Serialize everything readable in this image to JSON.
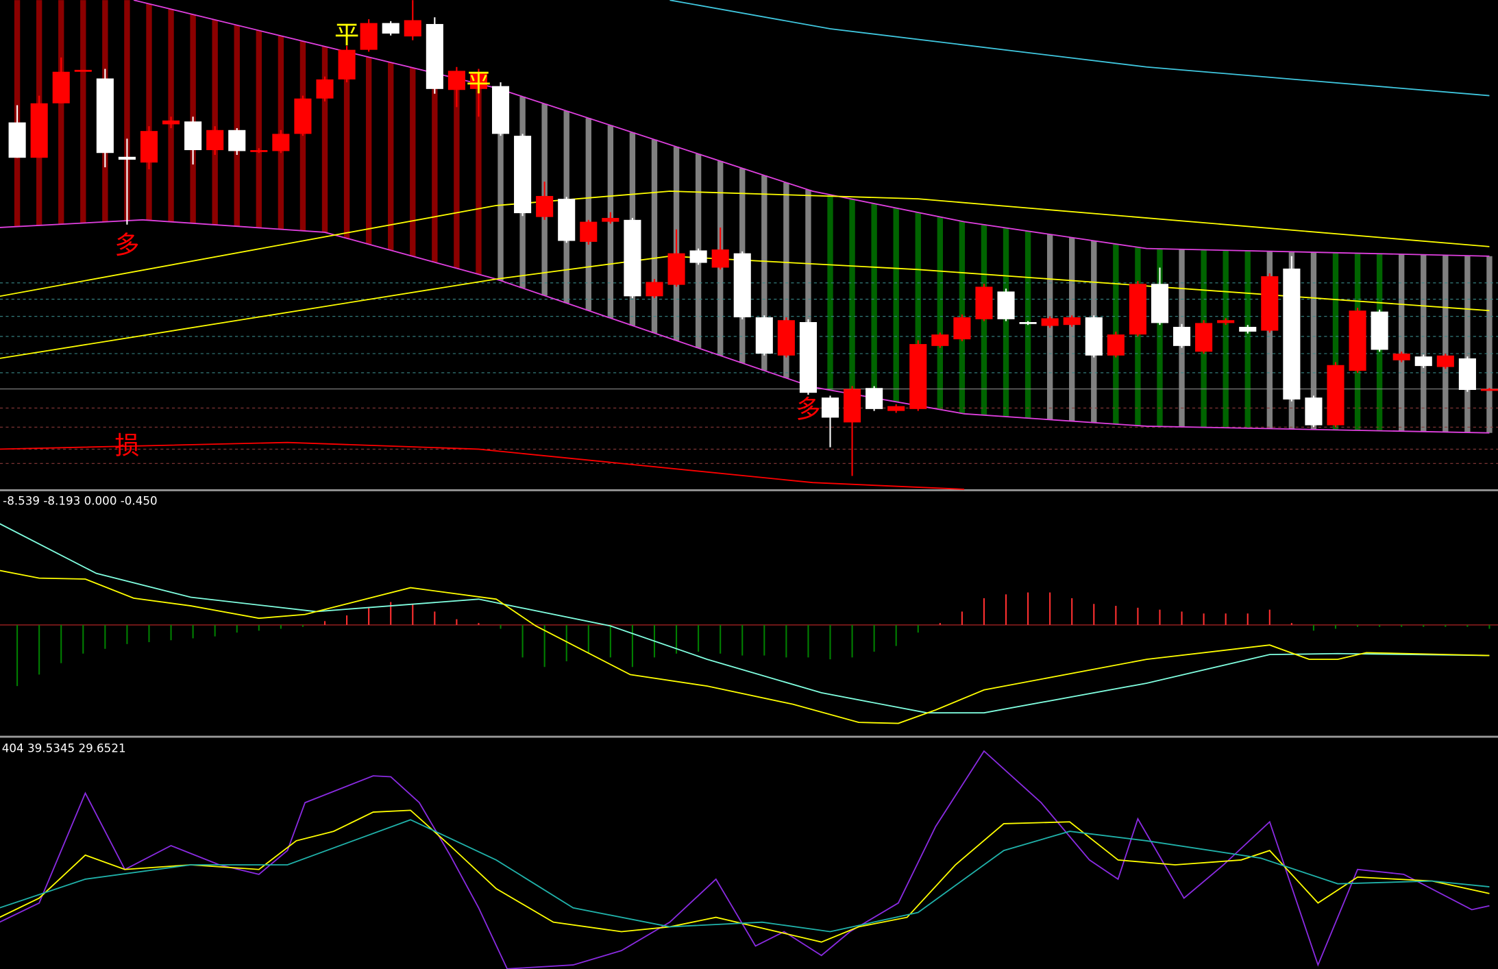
{
  "chart_data": [
    {
      "type": "candlestick",
      "open": [
        384,
        347,
        404,
        438,
        430,
        348,
        342,
        382,
        385,
        355,
        376,
        354,
        354,
        372,
        409,
        429,
        460,
        488,
        474,
        487,
        418,
        419,
        422,
        370,
        285,
        304,
        259,
        280,
        282,
        202,
        214,
        250,
        232,
        247,
        180,
        140,
        175,
        96,
        70,
        106,
        82,
        84,
        150,
        157,
        178,
        207,
        175,
        171,
        172,
        180,
        140,
        162,
        215,
        170,
        144,
        174,
        170,
        166,
        231,
        96,
        67,
        124,
        186,
        135,
        139,
        128,
        137,
        104
      ],
      "close": [
        347,
        404,
        437,
        439,
        352,
        345,
        375,
        386,
        355,
        376,
        354,
        355,
        372,
        409,
        429,
        460,
        488,
        477,
        491,
        419,
        438,
        435,
        372,
        289,
        307,
        260,
        280,
        284,
        202,
        217,
        247,
        237,
        251,
        180,
        142,
        177,
        101,
        75,
        105,
        84,
        87,
        152,
        162,
        180,
        212,
        178,
        173,
        179,
        180,
        140,
        162,
        215,
        174,
        150,
        174,
        177,
        165,
        223,
        94,
        67,
        130,
        187,
        146,
        142,
        129,
        140,
        104,
        105
      ],
      "high": [
        402,
        412,
        452,
        439,
        440,
        367,
        380,
        390,
        390,
        380,
        378,
        357,
        376,
        412,
        432,
        464,
        492,
        490,
        512,
        494,
        442,
        440,
        426,
        372,
        322,
        306,
        282,
        290,
        284,
        220,
        272,
        252,
        274,
        249,
        182,
        180,
        178,
        98,
        108,
        108,
        89,
        156,
        164,
        183,
        215,
        210,
        176,
        181,
        182,
        182,
        165,
        218,
        232,
        173,
        177,
        179,
        172,
        226,
        244,
        98,
        133,
        190,
        188,
        144,
        141,
        142,
        139,
        106
      ],
      "low": [
        347,
        347,
        404,
        438,
        337,
        277,
        335,
        378,
        340,
        350,
        350,
        352,
        352,
        370,
        406,
        426,
        458,
        475,
        470,
        414,
        400,
        390,
        370,
        286,
        282,
        258,
        256,
        278,
        200,
        200,
        212,
        235,
        230,
        178,
        140,
        138,
        99,
        44,
        14,
        82,
        80,
        82,
        148,
        155,
        176,
        176,
        172,
        169,
        170,
        138,
        138,
        160,
        172,
        148,
        142,
        172,
        163,
        164,
        92,
        65,
        65,
        122,
        144,
        133,
        127,
        126,
        102,
        103
      ],
      "column_colors": [
        "#8b0000",
        "#8b0000",
        "#8b0000",
        "#8b0000",
        "#8b0000",
        "#8b0000",
        "#8b0000",
        "#8b0000",
        "#8b0000",
        "#8b0000",
        "#8b0000",
        "#8b0000",
        "#8b0000",
        "#8b0000",
        "#8b0000",
        "#8b0000",
        "#8b0000",
        "#8b0000",
        "#8b0000",
        "#8b0000",
        "#8b0000",
        "#8b0000",
        "#808080",
        "#808080",
        "#808080",
        "#808080",
        "#808080",
        "#808080",
        "#808080",
        "#808080",
        "#808080",
        "#808080",
        "#808080",
        "#808080",
        "#808080",
        "#808080",
        "#808080",
        "#006400",
        "#006400",
        "#006400",
        "#006400",
        "#006400",
        "#006400",
        "#006400",
        "#006400",
        "#006400",
        "#006400",
        "#808080",
        "#808080",
        "#808080",
        "#006400",
        "#006400",
        "#006400",
        "#808080",
        "#006400",
        "#006400",
        "#006400",
        "#808080",
        "#808080",
        "#808080",
        "#006400",
        "#006400",
        "#006400",
        "#808080",
        "#808080",
        "#808080",
        "#808080",
        "#808080"
      ],
      "up_color": "#ff0000",
      "down_color": "#ffffff",
      "lines": [
        {
          "color": "#e040e0",
          "x": [
            5.3,
            21.8,
            36.2,
            43.1,
            51.4,
            67
          ],
          "values": [
            512,
            420,
            312,
            280,
            252,
            244
          ]
        },
        {
          "color": "#e040e0",
          "x": [
            -0.8,
            5.7,
            14,
            21.8,
            36.2,
            43.1,
            51.4,
            67
          ],
          "values": [
            274,
            282,
            269,
            220,
            107,
            79,
            66,
            59
          ]
        },
        {
          "color": "#ffff00",
          "x": [
            -0.8,
            21.8,
            29.7,
            41,
            67
          ],
          "values": [
            202,
            297,
            312,
            304,
            254
          ]
        },
        {
          "color": "#ffff00",
          "x": [
            -0.8,
            21.8,
            29.7,
            41,
            67
          ],
          "values": [
            137,
            220,
            244,
            230,
            187
          ]
        },
        {
          "color": "#40c8e0",
          "x": [
            29.7,
            37,
            51.4,
            67
          ],
          "values": [
            512,
            482,
            442,
            412
          ]
        },
        {
          "color": "#ff0000",
          "x": [
            -0.8,
            12.3,
            21,
            36.2,
            43.1
          ],
          "values": [
            42,
            49,
            42,
            7,
            0
          ]
        }
      ],
      "annotations": [
        {
          "text": "平",
          "x": 15,
          "value": 474,
          "color": "#ffff00"
        },
        {
          "text": "平",
          "x": 21,
          "value": 424,
          "color": "#ffff00"
        },
        {
          "text": "多",
          "x": 5,
          "value": 254,
          "color": "#ff0000"
        },
        {
          "text": "多",
          "x": 36,
          "value": 82,
          "color": "#ff0000"
        },
        {
          "text": "损",
          "x": 5,
          "value": 44,
          "color": "#ff0000"
        }
      ]
    },
    {
      "type": "macd",
      "header": "-8.539 -8.193 0.000 -0.450",
      "histogram": [
        -64,
        -52,
        -40,
        -30,
        -25,
        -20,
        -18,
        -16,
        -14,
        -12,
        -8,
        -6,
        -4,
        -2,
        4,
        10,
        18,
        24,
        22,
        14,
        6,
        2,
        -4,
        -34,
        -44,
        -38,
        -30,
        -34,
        -44,
        -34,
        -30,
        -28,
        -30,
        -32,
        -32,
        -34,
        -34,
        -36,
        -34,
        -28,
        -22,
        -8,
        2,
        14,
        28,
        32,
        34,
        34,
        28,
        22,
        20,
        18,
        16,
        14,
        12,
        12,
        12,
        16,
        2,
        -6,
        -4,
        -2,
        -2,
        -2,
        -2,
        -2,
        -2,
        -4
      ],
      "up_color": "#ff3030",
      "down_color": "#008000",
      "series": [
        {
          "color": "#80ffe0",
          "x": [
            -0.8,
            3.6,
            7.9,
            13.6,
            21,
            27,
            31.4,
            36.6,
            41.4,
            44,
            51.4,
            57,
            60.1,
            67
          ],
          "values": [
            106,
            54,
            29,
            14,
            27,
            -1,
            -36,
            -71,
            -92,
            -92,
            -61,
            -31,
            -30,
            -32
          ]
        },
        {
          "color": "#ffff00",
          "x": [
            -0.8,
            1.0,
            3.1,
            5.3,
            7.9,
            11.0,
            13.1,
            17.9,
            21.8,
            23.6,
            27.9,
            31.4,
            35.3,
            38.3,
            40.1,
            41.8,
            44.0,
            51.4,
            57.0,
            58.8,
            60.1,
            61.4,
            67.0
          ],
          "values": [
            57,
            49,
            48,
            28,
            20,
            7,
            11,
            39,
            27,
            -1,
            -52,
            -64,
            -83,
            -102,
            -103,
            -89,
            -68,
            -36,
            -21,
            -36,
            -36,
            -29,
            -32
          ]
        }
      ]
    },
    {
      "type": "kdj",
      "header": "404 39.5345 29.6521",
      "series": [
        {
          "color": "#8a2be2",
          "x": [
            -0.8,
            1.0,
            3.1,
            4.9,
            7.0,
            9.2,
            11.0,
            12.3,
            13.1,
            16.2,
            17.0,
            18.3,
            19.7,
            21.0,
            22.3,
            25.3,
            27.5,
            29.7,
            31.8,
            33.6,
            34.9,
            36.6,
            37.9,
            40.1,
            41.8,
            44.0,
            46.6,
            48.8,
            50.1,
            51.0,
            53.1,
            54.9,
            57.0,
            59.2,
            61.0,
            63.1,
            66.2,
            67.0
          ],
          "values": [
            20.2,
            28.5,
            76,
            43,
            53.3,
            45,
            40.9,
            51.2,
            71.9,
            83.5,
            83.1,
            71.9,
            49.2,
            26.4,
            0,
            1.7,
            7.9,
            20.2,
            38.8,
            9.9,
            16.1,
            5.8,
            16.1,
            28.5,
            61.6,
            94.2,
            71.9,
            47.1,
            38.8,
            64.9,
            30.6,
            45,
            63.6,
            1.7,
            43,
            40.9,
            25.6,
            27.3
          ]
        },
        {
          "color": "#ffff00",
          "x": [
            -0.8,
            1.0,
            3.1,
            4.9,
            7.9,
            11.0,
            12.7,
            14.4,
            16.2,
            17.9,
            19.7,
            21.8,
            24.4,
            27.5,
            29.7,
            31.8,
            34.0,
            36.6,
            38.3,
            40.5,
            42.7,
            44.9,
            47.9,
            50.1,
            52.7,
            55.7,
            57.0,
            59.2,
            61.0,
            64.4,
            67.0
          ],
          "values": [
            22.3,
            30.6,
            49.2,
            43,
            45,
            43,
            55.4,
            59.5,
            67.8,
            68.6,
            53.3,
            34.7,
            20.2,
            16.1,
            18.2,
            22.3,
            17.4,
            11.6,
            18.2,
            22.3,
            45,
            62.8,
            63.6,
            47.1,
            45,
            47.1,
            51.2,
            28.5,
            39.7,
            38,
            32.6
          ]
        },
        {
          "color": "#20b2aa",
          "x": [
            -0.8,
            3.1,
            7.9,
            12.3,
            17.9,
            21.8,
            25.3,
            29.7,
            33.9,
            37.0,
            41.0,
            44.9,
            47.9,
            51.4,
            56.6,
            60.1,
            64.4,
            67.0
          ],
          "values": [
            26.4,
            38.8,
            45,
            45,
            64.5,
            47.1,
            26.4,
            18.2,
            20.2,
            16.1,
            24.4,
            51.2,
            59.5,
            55.4,
            47.9,
            36.8,
            38,
            35.5
          ]
        }
      ]
    }
  ]
}
